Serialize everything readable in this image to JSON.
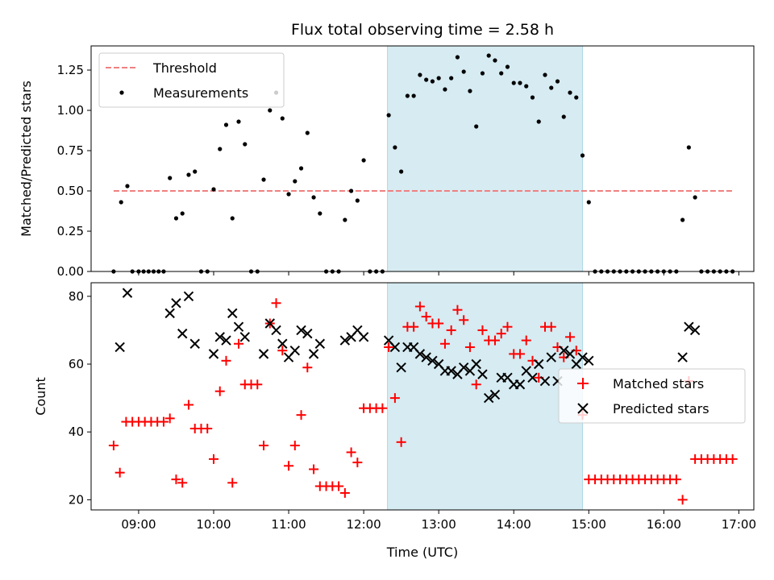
{
  "title": "Flux total observing time = 2.58 h",
  "chart_data": [
    {
      "type": "scatter",
      "ylabel": "Matched/Predicted stars",
      "xlim": [
        "08:22",
        "17:12"
      ],
      "ylim": [
        0,
        1.4
      ],
      "yticks": [
        "0.00",
        "0.25",
        "0.50",
        "0.75",
        "1.00",
        "1.25"
      ],
      "grid": false,
      "legend_position": "top-left",
      "highlight_span": [
        "12:19",
        "14:55"
      ],
      "highlight_color": "#add8e6",
      "threshold": {
        "name": "Threshold",
        "value": 0.5,
        "x_range": [
          "08:40",
          "16:55"
        ],
        "color": "#f08080"
      },
      "measurements": {
        "name": "Measurements",
        "color": "#000000",
        "points": [
          [
            "08:40",
            0
          ],
          [
            "08:46",
            0.43
          ],
          [
            "08:51",
            0.53
          ],
          [
            "08:55",
            0
          ],
          [
            "09:00",
            0
          ],
          [
            "09:04",
            0
          ],
          [
            "09:08",
            0
          ],
          [
            "09:12",
            0
          ],
          [
            "09:16",
            0
          ],
          [
            "09:20",
            0
          ],
          [
            "09:25",
            0.58
          ],
          [
            "09:30",
            0.33
          ],
          [
            "09:35",
            0.36
          ],
          [
            "09:40",
            0.6
          ],
          [
            "09:45",
            0.62
          ],
          [
            "09:50",
            0
          ],
          [
            "09:55",
            0
          ],
          [
            "10:00",
            0.51
          ],
          [
            "10:05",
            0.76
          ],
          [
            "10:10",
            0.91
          ],
          [
            "10:15",
            0.33
          ],
          [
            "10:20",
            0.93
          ],
          [
            "10:25",
            0.79
          ],
          [
            "10:30",
            0
          ],
          [
            "10:35",
            0
          ],
          [
            "10:40",
            0.57
          ],
          [
            "10:45",
            1.0
          ],
          [
            "10:50",
            1.11
          ],
          [
            "10:55",
            0.95
          ],
          [
            "11:00",
            0.48
          ],
          [
            "11:05",
            0.56
          ],
          [
            "11:10",
            0.64
          ],
          [
            "11:15",
            0.86
          ],
          [
            "11:20",
            0.46
          ],
          [
            "11:25",
            0.36
          ],
          [
            "11:30",
            0
          ],
          [
            "11:35",
            0
          ],
          [
            "11:40",
            0
          ],
          [
            "11:45",
            0.32
          ],
          [
            "11:50",
            0.5
          ],
          [
            "11:55",
            0.44
          ],
          [
            "12:00",
            0.69
          ],
          [
            "12:05",
            0
          ],
          [
            "12:10",
            0
          ],
          [
            "12:15",
            0
          ],
          [
            "12:20",
            0.97
          ],
          [
            "12:25",
            0.77
          ],
          [
            "12:30",
            0.62
          ],
          [
            "12:35",
            1.09
          ],
          [
            "12:40",
            1.09
          ],
          [
            "12:45",
            1.22
          ],
          [
            "12:50",
            1.19
          ],
          [
            "12:55",
            1.18
          ],
          [
            "13:00",
            1.2
          ],
          [
            "13:05",
            1.13
          ],
          [
            "13:10",
            1.2
          ],
          [
            "13:15",
            1.33
          ],
          [
            "13:20",
            1.24
          ],
          [
            "13:25",
            1.12
          ],
          [
            "13:30",
            0.9
          ],
          [
            "13:35",
            1.23
          ],
          [
            "13:40",
            1.34
          ],
          [
            "13:45",
            1.31
          ],
          [
            "13:50",
            1.23
          ],
          [
            "13:55",
            1.27
          ],
          [
            "14:00",
            1.17
          ],
          [
            "14:05",
            1.17
          ],
          [
            "14:10",
            1.15
          ],
          [
            "14:15",
            1.08
          ],
          [
            "14:20",
            0.93
          ],
          [
            "14:25",
            1.22
          ],
          [
            "14:30",
            1.14
          ],
          [
            "14:35",
            1.18
          ],
          [
            "14:40",
            0.96
          ],
          [
            "14:45",
            1.11
          ],
          [
            "14:50",
            1.08
          ],
          [
            "14:55",
            0.72
          ],
          [
            "15:00",
            0.43
          ],
          [
            "15:05",
            0
          ],
          [
            "15:10",
            0
          ],
          [
            "15:15",
            0
          ],
          [
            "15:20",
            0
          ],
          [
            "15:25",
            0
          ],
          [
            "15:30",
            0
          ],
          [
            "15:35",
            0
          ],
          [
            "15:40",
            0
          ],
          [
            "15:45",
            0
          ],
          [
            "15:50",
            0
          ],
          [
            "15:55",
            0
          ],
          [
            "16:00",
            0
          ],
          [
            "16:05",
            0
          ],
          [
            "16:10",
            0
          ],
          [
            "16:15",
            0.32
          ],
          [
            "16:20",
            0.77
          ],
          [
            "16:25",
            0.46
          ],
          [
            "16:30",
            0
          ],
          [
            "16:35",
            0
          ],
          [
            "16:40",
            0
          ],
          [
            "16:45",
            0
          ],
          [
            "16:50",
            0
          ],
          [
            "16:55",
            0
          ]
        ]
      }
    },
    {
      "type": "scatter",
      "xlabel": "Time (UTC)",
      "ylabel": "Count",
      "xlim": [
        "08:22",
        "17:12"
      ],
      "ylim": [
        17,
        84
      ],
      "xticks": [
        "09:00",
        "10:00",
        "11:00",
        "12:00",
        "13:00",
        "14:00",
        "15:00",
        "16:00",
        "17:00"
      ],
      "yticks": [
        "20",
        "40",
        "60",
        "80"
      ],
      "grid": false,
      "legend_position": "center-right",
      "highlight_span": [
        "12:19",
        "14:55"
      ],
      "series": [
        {
          "name": "Matched stars",
          "marker": "+",
          "color": "#ff0000",
          "points": [
            [
              "08:40",
              36
            ],
            [
              "08:45",
              28
            ],
            [
              "08:50",
              43
            ],
            [
              "08:55",
              43
            ],
            [
              "09:00",
              43
            ],
            [
              "09:05",
              43
            ],
            [
              "09:10",
              43
            ],
            [
              "09:15",
              43
            ],
            [
              "09:20",
              43
            ],
            [
              "09:25",
              44
            ],
            [
              "09:30",
              26
            ],
            [
              "09:35",
              25
            ],
            [
              "09:40",
              48
            ],
            [
              "09:45",
              41
            ],
            [
              "09:50",
              41
            ],
            [
              "09:55",
              41
            ],
            [
              "10:00",
              32
            ],
            [
              "10:05",
              52
            ],
            [
              "10:10",
              61
            ],
            [
              "10:15",
              25
            ],
            [
              "10:20",
              66
            ],
            [
              "10:25",
              54
            ],
            [
              "10:30",
              54
            ],
            [
              "10:35",
              54
            ],
            [
              "10:40",
              36
            ],
            [
              "10:45",
              72
            ],
            [
              "10:50",
              78
            ],
            [
              "10:55",
              64
            ],
            [
              "11:00",
              30
            ],
            [
              "11:05",
              36
            ],
            [
              "11:10",
              45
            ],
            [
              "11:15",
              59
            ],
            [
              "11:20",
              29
            ],
            [
              "11:25",
              24
            ],
            [
              "11:30",
              24
            ],
            [
              "11:35",
              24
            ],
            [
              "11:40",
              24
            ],
            [
              "11:45",
              22
            ],
            [
              "11:50",
              34
            ],
            [
              "11:55",
              31
            ],
            [
              "12:00",
              47
            ],
            [
              "12:05",
              47
            ],
            [
              "12:10",
              47
            ],
            [
              "12:15",
              47
            ],
            [
              "12:20",
              65
            ],
            [
              "12:25",
              50
            ],
            [
              "12:30",
              37
            ],
            [
              "12:35",
              71
            ],
            [
              "12:40",
              71
            ],
            [
              "12:45",
              77
            ],
            [
              "12:50",
              74
            ],
            [
              "12:55",
              72
            ],
            [
              "13:00",
              72
            ],
            [
              "13:05",
              66
            ],
            [
              "13:10",
              70
            ],
            [
              "13:15",
              76
            ],
            [
              "13:20",
              73
            ],
            [
              "13:25",
              65
            ],
            [
              "13:30",
              54
            ],
            [
              "13:35",
              70
            ],
            [
              "13:40",
              67
            ],
            [
              "13:45",
              67
            ],
            [
              "13:50",
              69
            ],
            [
              "13:55",
              71
            ],
            [
              "14:00",
              63
            ],
            [
              "14:05",
              63
            ],
            [
              "14:10",
              67
            ],
            [
              "14:15",
              61
            ],
            [
              "14:20",
              56
            ],
            [
              "14:25",
              71
            ],
            [
              "14:30",
              71
            ],
            [
              "14:35",
              65
            ],
            [
              "14:40",
              62
            ],
            [
              "14:45",
              68
            ],
            [
              "14:50",
              64
            ],
            [
              "14:55",
              45
            ],
            [
              "15:00",
              26
            ],
            [
              "15:05",
              26
            ],
            [
              "15:10",
              26
            ],
            [
              "15:15",
              26
            ],
            [
              "15:20",
              26
            ],
            [
              "15:25",
              26
            ],
            [
              "15:30",
              26
            ],
            [
              "15:35",
              26
            ],
            [
              "15:40",
              26
            ],
            [
              "15:45",
              26
            ],
            [
              "15:50",
              26
            ],
            [
              "15:55",
              26
            ],
            [
              "16:00",
              26
            ],
            [
              "16:05",
              26
            ],
            [
              "16:10",
              26
            ],
            [
              "16:15",
              20
            ],
            [
              "16:20",
              55
            ],
            [
              "16:25",
              32
            ],
            [
              "16:30",
              32
            ],
            [
              "16:35",
              32
            ],
            [
              "16:40",
              32
            ],
            [
              "16:45",
              32
            ],
            [
              "16:50",
              32
            ],
            [
              "16:55",
              32
            ]
          ]
        },
        {
          "name": "Predicted stars",
          "marker": "x",
          "color": "#000000",
          "points": [
            [
              "08:45",
              65
            ],
            [
              "08:51",
              81
            ],
            [
              "09:25",
              75
            ],
            [
              "09:30",
              78
            ],
            [
              "09:35",
              69
            ],
            [
              "09:40",
              80
            ],
            [
              "09:45",
              66
            ],
            [
              "10:00",
              63
            ],
            [
              "10:05",
              68
            ],
            [
              "10:10",
              67
            ],
            [
              "10:15",
              75
            ],
            [
              "10:20",
              71
            ],
            [
              "10:25",
              68
            ],
            [
              "10:40",
              63
            ],
            [
              "10:45",
              72
            ],
            [
              "10:50",
              70
            ],
            [
              "10:55",
              66
            ],
            [
              "11:00",
              62
            ],
            [
              "11:05",
              64
            ],
            [
              "11:10",
              70
            ],
            [
              "11:15",
              69
            ],
            [
              "11:20",
              63
            ],
            [
              "11:25",
              66
            ],
            [
              "11:45",
              67
            ],
            [
              "11:50",
              68
            ],
            [
              "11:55",
              70
            ],
            [
              "12:00",
              68
            ],
            [
              "12:20",
              67
            ],
            [
              "12:25",
              65
            ],
            [
              "12:30",
              59
            ],
            [
              "12:35",
              65
            ],
            [
              "12:40",
              65
            ],
            [
              "12:45",
              63
            ],
            [
              "12:50",
              62
            ],
            [
              "12:55",
              61
            ],
            [
              "13:00",
              60
            ],
            [
              "13:05",
              58
            ],
            [
              "13:10",
              58
            ],
            [
              "13:15",
              57
            ],
            [
              "13:20",
              59
            ],
            [
              "13:25",
              58
            ],
            [
              "13:30",
              60
            ],
            [
              "13:35",
              57
            ],
            [
              "13:40",
              50
            ],
            [
              "13:45",
              51
            ],
            [
              "13:50",
              56
            ],
            [
              "13:55",
              56
            ],
            [
              "14:00",
              54
            ],
            [
              "14:05",
              54
            ],
            [
              "14:10",
              58
            ],
            [
              "14:15",
              56
            ],
            [
              "14:20",
              60
            ],
            [
              "14:25",
              55
            ],
            [
              "14:30",
              62
            ],
            [
              "14:35",
              55
            ],
            [
              "14:40",
              64
            ],
            [
              "14:45",
              63
            ],
            [
              "14:50",
              60
            ],
            [
              "14:55",
              62
            ],
            [
              "15:00",
              61
            ],
            [
              "16:15",
              62
            ],
            [
              "16:20",
              71
            ],
            [
              "16:25",
              70
            ]
          ]
        }
      ]
    }
  ]
}
